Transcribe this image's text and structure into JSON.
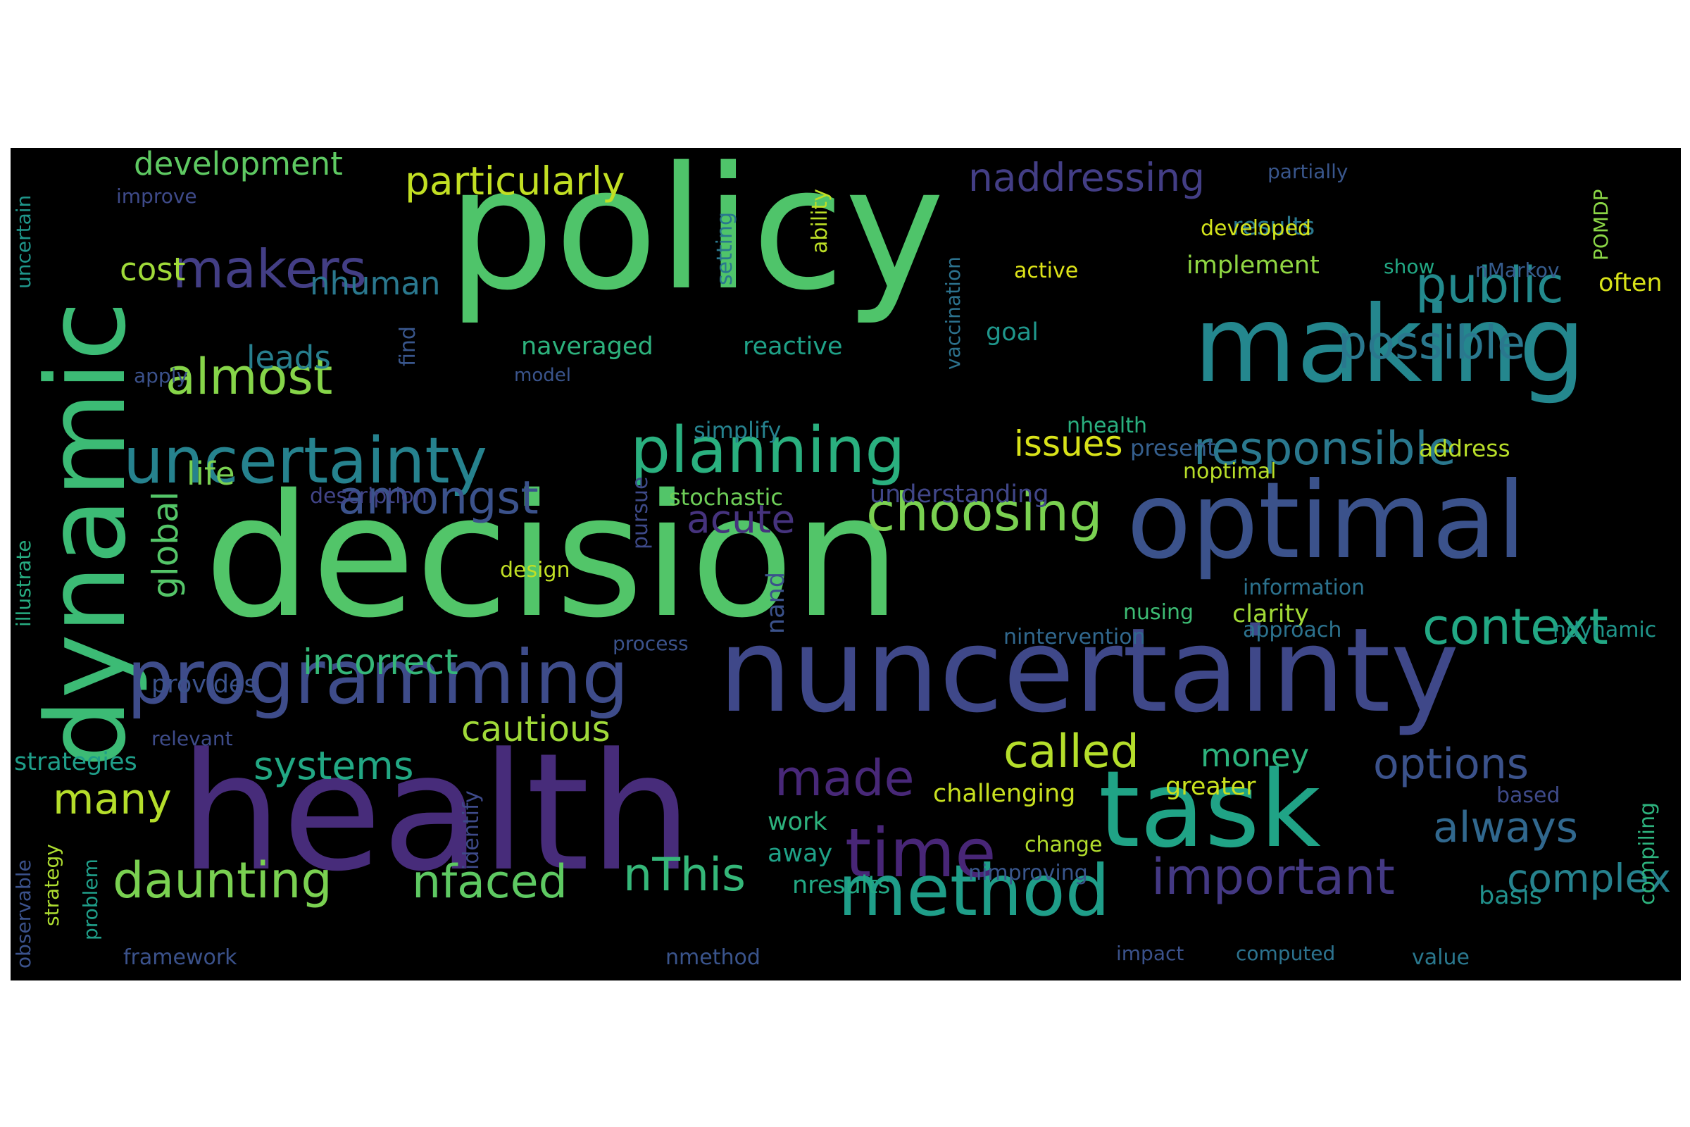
{
  "words": [
    {
      "text": "policy",
      "color": "#4fc46a"
    },
    {
      "text": "decision",
      "color": "#52c569"
    },
    {
      "text": "health",
      "color": "#472c7a"
    },
    {
      "text": "nuncertainty",
      "color": "#3f4889"
    },
    {
      "text": "making",
      "color": "#24878e"
    },
    {
      "text": "optimal",
      "color": "#3b528b"
    },
    {
      "text": "dynamic",
      "color": "#3cbb75"
    },
    {
      "text": "task",
      "color": "#20a386"
    },
    {
      "text": "programming",
      "color": "#3e4c8a"
    },
    {
      "text": "uncertainty",
      "color": "#26828e"
    },
    {
      "text": "method",
      "color": "#1f9e89"
    },
    {
      "text": "planning",
      "color": "#2ab07f"
    },
    {
      "text": "makers",
      "color": "#433e85"
    },
    {
      "text": "important",
      "color": "#443983"
    },
    {
      "text": "time",
      "color": "#482677"
    },
    {
      "text": "daunting",
      "color": "#7ad151"
    },
    {
      "text": "almost",
      "color": "#86d549"
    },
    {
      "text": "public",
      "color": "#238a8d"
    },
    {
      "text": "context",
      "color": "#22a884"
    },
    {
      "text": "responsible",
      "color": "#2a788e"
    },
    {
      "text": "choosing",
      "color": "#7ad151"
    },
    {
      "text": "possible",
      "color": "#2a788e"
    },
    {
      "text": "amongst",
      "color": "#3b528b"
    },
    {
      "text": "nThis",
      "color": "#35b779"
    },
    {
      "text": "nfaced",
      "color": "#5ec962"
    },
    {
      "text": "made",
      "color": "#482878"
    },
    {
      "text": "options",
      "color": "#3b528b"
    },
    {
      "text": "always",
      "color": "#31688e"
    },
    {
      "text": "called",
      "color": "#b5de2b"
    },
    {
      "text": "complex",
      "color": "#26828e"
    },
    {
      "text": "acute",
      "color": "#46337e"
    },
    {
      "text": "particularly",
      "color": "#c2df23"
    },
    {
      "text": "naddressing",
      "color": "#433e85"
    },
    {
      "text": "many",
      "color": "#b5de2b"
    },
    {
      "text": "systems",
      "color": "#22a884"
    },
    {
      "text": "incorrect",
      "color": "#35b779"
    },
    {
      "text": "cautious",
      "color": "#a0da39"
    },
    {
      "text": "issues",
      "color": "#d8e219"
    },
    {
      "text": "global",
      "color": "#54c568"
    },
    {
      "text": "development",
      "color": "#5ec962"
    },
    {
      "text": "cost",
      "color": "#a0da39"
    },
    {
      "text": "nhuman",
      "color": "#2a788e"
    },
    {
      "text": "leads",
      "color": "#277f8e"
    },
    {
      "text": "life",
      "color": "#7ad151"
    },
    {
      "text": "money",
      "color": "#2db27d"
    },
    {
      "text": "naveraged",
      "color": "#2db27d"
    },
    {
      "text": "reactive",
      "color": "#1fa187"
    },
    {
      "text": "implement",
      "color": "#90d743"
    },
    {
      "text": "results",
      "color": "#2a788e"
    },
    {
      "text": "clarity",
      "color": "#a2da37"
    },
    {
      "text": "challenging",
      "color": "#c8e020"
    },
    {
      "text": "greater",
      "color": "#cae11f"
    },
    {
      "text": "work",
      "color": "#2db27d"
    },
    {
      "text": "away",
      "color": "#1fa187"
    },
    {
      "text": "nresults",
      "color": "#22a884"
    },
    {
      "text": "strategies",
      "color": "#1f9e89"
    },
    {
      "text": "provides",
      "color": "#3b528b"
    },
    {
      "text": "address",
      "color": "#b8de29"
    },
    {
      "text": "goal",
      "color": "#1f968b"
    },
    {
      "text": "often",
      "color": "#d8e219"
    },
    {
      "text": "basis",
      "color": "#21918c"
    },
    {
      "text": "simplify",
      "color": "#26828e"
    },
    {
      "text": "stochastic",
      "color": "#6ece58"
    },
    {
      "text": "understanding",
      "color": "#404688"
    },
    {
      "text": "description",
      "color": "#414487"
    },
    {
      "text": "present",
      "color": "#355f8d"
    },
    {
      "text": "noptimal",
      "color": "#b8de29"
    },
    {
      "text": "nhealth",
      "color": "#2ab07f"
    },
    {
      "text": "nusing",
      "color": "#3dbc74"
    },
    {
      "text": "information",
      "color": "#2c728e"
    },
    {
      "text": "approach",
      "color": "#2c728e"
    },
    {
      "text": "ndynamic",
      "color": "#1f968b"
    },
    {
      "text": "nintervention",
      "color": "#31688e"
    },
    {
      "text": "design",
      "color": "#c0df25"
    },
    {
      "text": "developed",
      "color": "#d2e21b"
    },
    {
      "text": "active",
      "color": "#dde318"
    },
    {
      "text": "show",
      "color": "#22a884"
    },
    {
      "text": "nMarkov",
      "color": "#365c8d"
    },
    {
      "text": "partially",
      "color": "#39568c"
    },
    {
      "text": "improve",
      "color": "#3e4a89"
    },
    {
      "text": "apply",
      "color": "#3b518b"
    },
    {
      "text": "model",
      "color": "#3a548c"
    },
    {
      "text": "relevant",
      "color": "#3e4c8a"
    },
    {
      "text": "process",
      "color": "#3b528b"
    },
    {
      "text": "framework",
      "color": "#3b528b"
    },
    {
      "text": "nmethod",
      "color": "#3a548c"
    },
    {
      "text": "impact",
      "color": "#3b528b"
    },
    {
      "text": "computed",
      "color": "#2c728e"
    },
    {
      "text": "value",
      "color": "#2a788e"
    },
    {
      "text": "change",
      "color": "#b2dd2d"
    },
    {
      "text": "nimproving",
      "color": "#39568c"
    },
    {
      "text": "based",
      "color": "#3e4a89"
    },
    {
      "text": "uncertain",
      "color": "#1f968b"
    },
    {
      "text": "illustrate",
      "color": "#27ad81"
    },
    {
      "text": "strategy",
      "color": "#addc30"
    },
    {
      "text": "observable",
      "color": "#3b528b"
    },
    {
      "text": "problem",
      "color": "#1f9e89"
    },
    {
      "text": "identify",
      "color": "#3e4a89"
    },
    {
      "text": "pursue",
      "color": "#3e4a89"
    },
    {
      "text": "nand",
      "color": "#3b528b"
    },
    {
      "text": "find",
      "color": "#39568c"
    },
    {
      "text": "setting",
      "color": "#2a788e"
    },
    {
      "text": "vaccination",
      "color": "#2c728e"
    },
    {
      "text": "ability",
      "color": "#bddf26"
    },
    {
      "text": "POMDP",
      "color": "#8bd646"
    },
    {
      "text": "compiling",
      "color": "#2db27d"
    }
  ]
}
